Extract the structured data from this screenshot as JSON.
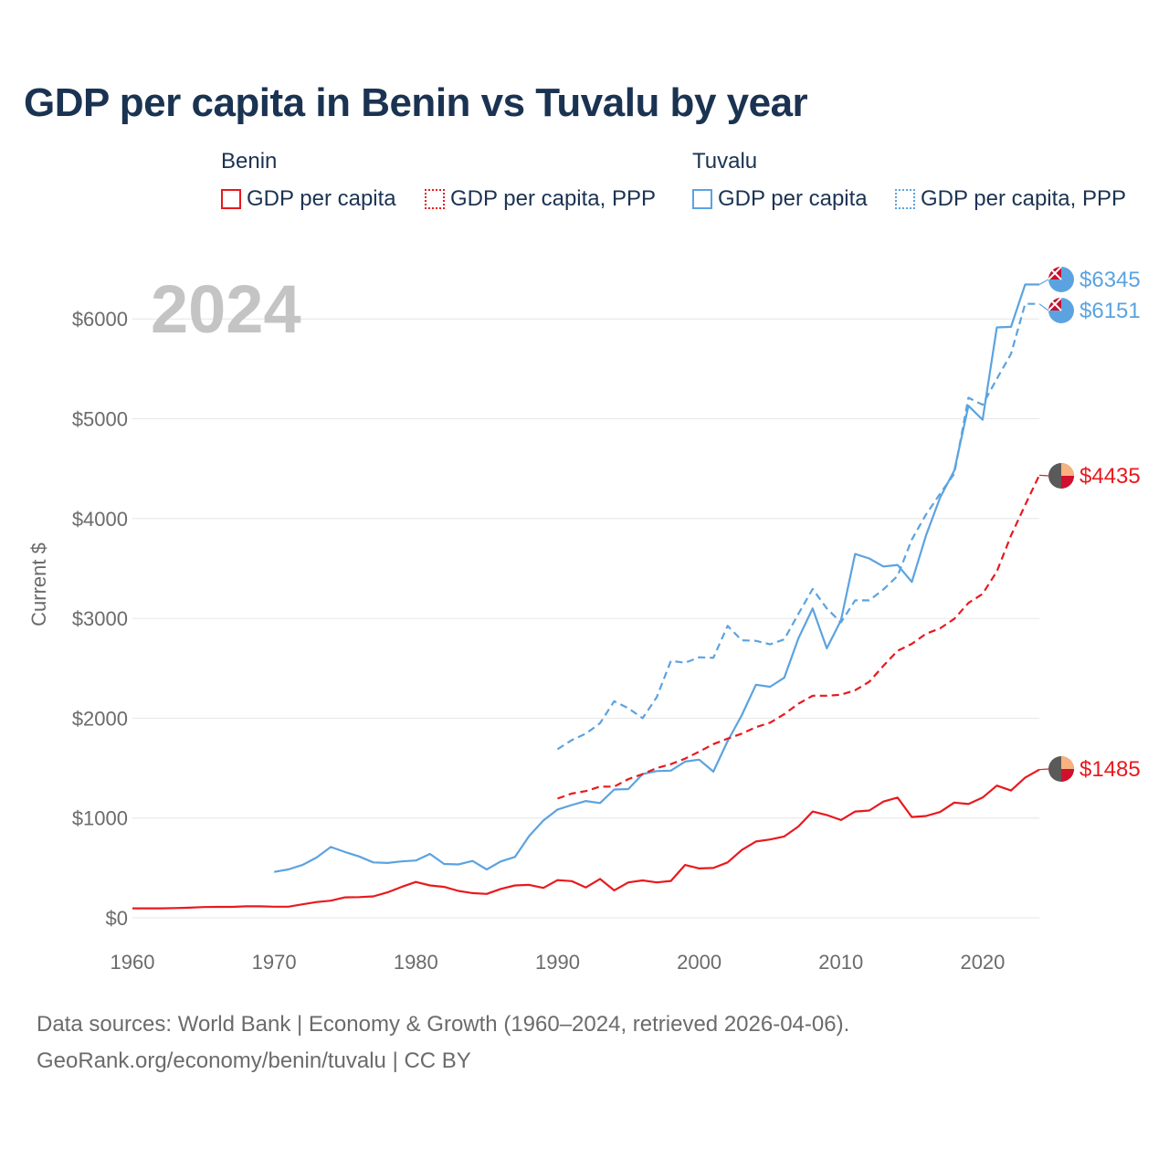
{
  "title": "GDP per capita in Benin vs Tuvalu by year",
  "year_label": "2024",
  "legend": {
    "benin_title": "Benin",
    "tuvalu_title": "Tuvalu",
    "benin_gdp": "GDP per capita",
    "benin_ppp": "GDP per capita, PPP",
    "tuvalu_gdp": "GDP per capita",
    "tuvalu_ppp": "GDP per capita, PPP"
  },
  "colors": {
    "benin": "#e8191e",
    "tuvalu": "#5ba3e0"
  },
  "footer": {
    "line1": "Data sources: World Bank | Economy & Growth (1960–2024, retrieved 2026-04-06).",
    "line2": "GeoRank.org/economy/benin/tuvalu | CC BY"
  },
  "chart_data": {
    "type": "line",
    "title": "GDP per capita in Benin vs Tuvalu by year",
    "xlabel": "",
    "ylabel": "Current $",
    "xlim": [
      1960,
      2024
    ],
    "ylim": [
      0,
      6345
    ],
    "x_ticks": [
      1960,
      1970,
      1980,
      1990,
      2000,
      2010,
      2020
    ],
    "y_ticks": [
      0,
      1000,
      2000,
      3000,
      4000,
      5000,
      6000
    ],
    "y_tick_labels": [
      "$0",
      "$1000",
      "$2000",
      "$3000",
      "$4000",
      "$5000",
      "$6000"
    ],
    "grid": true,
    "series": [
      {
        "name": "Tuvalu GDP per capita",
        "country": "Tuvalu",
        "style": "solid",
        "end_label": "$6345",
        "x": [
          1970,
          1971,
          1972,
          1973,
          1974,
          1975,
          1976,
          1977,
          1978,
          1979,
          1980,
          1981,
          1982,
          1983,
          1984,
          1985,
          1986,
          1987,
          1988,
          1989,
          1990,
          1991,
          1992,
          1993,
          1994,
          1995,
          1996,
          1997,
          1998,
          1999,
          2000,
          2001,
          2002,
          2003,
          2004,
          2005,
          2006,
          2007,
          2008,
          2009,
          2010,
          2011,
          2012,
          2013,
          2014,
          2015,
          2016,
          2017,
          2018,
          2019,
          2020,
          2021,
          2022,
          2023,
          2024
        ],
        "y": [
          460,
          485,
          530,
          605,
          710,
          660,
          615,
          555,
          550,
          565,
          575,
          640,
          540,
          535,
          570,
          485,
          565,
          610,
          820,
          975,
          1085,
          1130,
          1170,
          1150,
          1285,
          1290,
          1440,
          1470,
          1475,
          1565,
          1585,
          1465,
          1770,
          2030,
          2335,
          2315,
          2405,
          2800,
          3100,
          2700,
          2980,
          3645,
          3600,
          3520,
          3535,
          3365,
          3830,
          4210,
          4480,
          5130,
          4990,
          5915,
          5920,
          6345,
          6345
        ]
      },
      {
        "name": "Tuvalu GDP per capita, PPP",
        "country": "Tuvalu",
        "style": "dashed",
        "end_label": "$6151",
        "x": [
          1990,
          1991,
          1992,
          1993,
          1994,
          1995,
          1996,
          1997,
          1998,
          1999,
          2000,
          2001,
          2002,
          2003,
          2004,
          2005,
          2006,
          2007,
          2008,
          2009,
          2010,
          2011,
          2012,
          2013,
          2014,
          2015,
          2016,
          2017,
          2018,
          2019,
          2020,
          2021,
          2022,
          2023,
          2024
        ],
        "y": [
          1690,
          1780,
          1845,
          1950,
          2170,
          2100,
          2000,
          2210,
          2575,
          2555,
          2610,
          2605,
          2925,
          2780,
          2775,
          2740,
          2790,
          3045,
          3295,
          3100,
          2960,
          3180,
          3180,
          3290,
          3425,
          3790,
          4040,
          4250,
          4450,
          5210,
          5140,
          5400,
          5650,
          6151,
          6151
        ]
      },
      {
        "name": "Benin GDP per capita, PPP",
        "country": "Benin",
        "style": "dashed",
        "end_label": "$4435",
        "x": [
          1990,
          1991,
          1992,
          1993,
          1994,
          1995,
          1996,
          1997,
          1998,
          1999,
          2000,
          2001,
          2002,
          2003,
          2004,
          2005,
          2006,
          2007,
          2008,
          2009,
          2010,
          2011,
          2012,
          2013,
          2014,
          2015,
          2016,
          2017,
          2018,
          2019,
          2020,
          2021,
          2022,
          2023,
          2024
        ],
        "y": [
          1195,
          1245,
          1270,
          1315,
          1315,
          1390,
          1440,
          1500,
          1540,
          1595,
          1665,
          1740,
          1795,
          1845,
          1910,
          1955,
          2040,
          2145,
          2225,
          2225,
          2235,
          2280,
          2365,
          2525,
          2675,
          2745,
          2845,
          2900,
          2995,
          3155,
          3245,
          3470,
          3830,
          4135,
          4435
        ]
      },
      {
        "name": "Benin GDP per capita",
        "country": "Benin",
        "style": "solid",
        "end_label": "$1485",
        "x": [
          1960,
          1961,
          1962,
          1963,
          1964,
          1965,
          1966,
          1967,
          1968,
          1969,
          1970,
          1971,
          1972,
          1973,
          1974,
          1975,
          1976,
          1977,
          1978,
          1979,
          1980,
          1981,
          1982,
          1983,
          1984,
          1985,
          1986,
          1987,
          1988,
          1989,
          1990,
          1991,
          1992,
          1993,
          1994,
          1995,
          1996,
          1997,
          1998,
          1999,
          2000,
          2001,
          2002,
          2003,
          2004,
          2005,
          2006,
          2007,
          2008,
          2009,
          2010,
          2011,
          2012,
          2013,
          2014,
          2015,
          2016,
          2017,
          2018,
          2019,
          2020,
          2021,
          2022,
          2023,
          2024
        ],
        "y": [
          95,
          95,
          95,
          98,
          102,
          108,
          110,
          110,
          115,
          115,
          112,
          112,
          135,
          158,
          172,
          205,
          208,
          215,
          255,
          310,
          360,
          325,
          310,
          270,
          248,
          240,
          290,
          325,
          330,
          300,
          378,
          368,
          305,
          390,
          275,
          355,
          375,
          355,
          370,
          530,
          495,
          500,
          555,
          680,
          765,
          785,
          815,
          915,
          1065,
          1030,
          980,
          1065,
          1075,
          1165,
          1205,
          1010,
          1020,
          1060,
          1155,
          1140,
          1205,
          1325,
          1275,
          1405,
          1485
        ]
      }
    ]
  }
}
